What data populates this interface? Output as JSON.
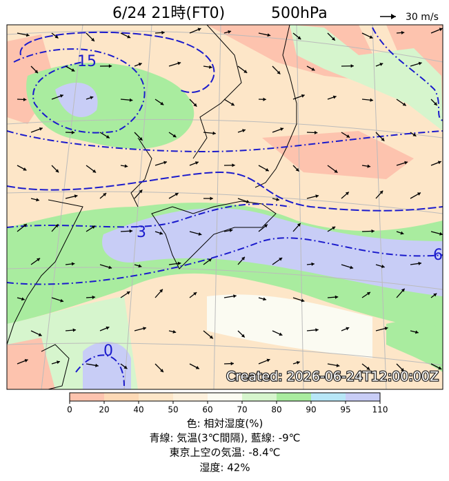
{
  "header": {
    "title": "6/24 21時(FT0)",
    "level": "500hPa",
    "vector_scale": "30 m/s"
  },
  "map": {
    "contour_labels": [
      "15",
      "3",
      "6",
      "0"
    ],
    "created": "Created: 2026-06-24T12:00:00Z"
  },
  "colorbar": {
    "ticks": [
      "0",
      "20",
      "40",
      "50",
      "60",
      "70",
      "80",
      "90",
      "95",
      "110"
    ],
    "colors": [
      "#fdc3ae",
      "#fdd9b5",
      "#fde6c8",
      "#fdf0dc",
      "#fbfbf2",
      "#d6f5cd",
      "#a9ec9f",
      "#b7e6f7",
      "#c8cdf6"
    ]
  },
  "caption": [
    "色: 相対湿度(%)",
    "青線: 気温(3℃間隔), 藍線: -9℃",
    "東京上空の気温: -8.4℃",
    "湿度: 42%"
  ]
}
